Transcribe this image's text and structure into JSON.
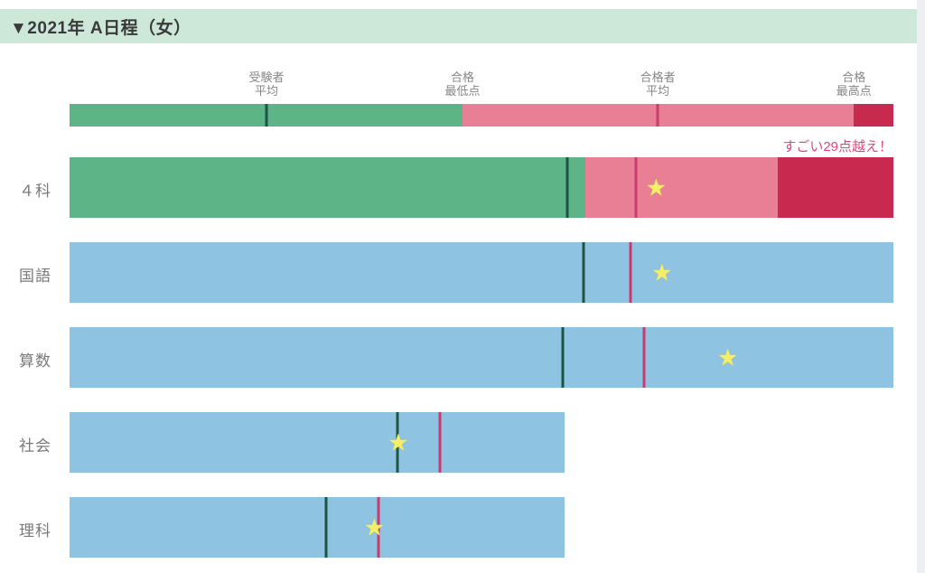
{
  "header": {
    "title": "▼2021年 A日程（女）"
  },
  "colors": {
    "header_bg": "#cde8d9",
    "green": "#5cb487",
    "pink": "#e97f95",
    "dark_red": "#c8294e",
    "blue": "#8fc3e2",
    "line_examinee": "#1d5443",
    "line_passer": "#c93a6e",
    "star": "#f5ee68",
    "annotation_text": "#e1457c",
    "row_label": "#7a7a7a",
    "legend_label": "#868686"
  },
  "chart_data": {
    "type": "bar",
    "title": "2021年 A日程（女）",
    "orientation": "horizontal",
    "scale_note": "no numeric axis shown; marker positions estimated as percent of full bar width",
    "legend_bar": {
      "markers": [
        {
          "key": "examinee-average",
          "line1": "受験者",
          "line2": "平均",
          "pct": 23.9,
          "style": "dark-green-line"
        },
        {
          "key": "pass-minimum",
          "line1": "合格",
          "line2": "最低点",
          "pct": 47.7,
          "style": "green-to-pink-boundary"
        },
        {
          "key": "passer-average",
          "line1": "合格者",
          "line2": "平均",
          "pct": 71.4,
          "style": "red-line"
        },
        {
          "key": "pass-maximum",
          "line1": "合格",
          "line2": "最高点",
          "pct": 95.2,
          "style": "pink-to-darkred-boundary"
        }
      ],
      "segments": [
        {
          "color": "green",
          "start": 0,
          "end": 47.7
        },
        {
          "color": "pink",
          "start": 47.7,
          "end": 95.2
        },
        {
          "color": "dark_red",
          "start": 95.2,
          "end": 100
        }
      ]
    },
    "rows": [
      {
        "key": "total-4-subjects",
        "label": "４科",
        "end_pct": 100,
        "segments": [
          {
            "color": "green",
            "start": 0,
            "end": 62.6
          },
          {
            "color": "pink",
            "start": 62.6,
            "end": 86.0
          },
          {
            "color": "dark_red",
            "start": 86.0,
            "end": 100
          }
        ],
        "examinee_avg_pct": 60.4,
        "passer_avg_pct": 68.8,
        "star_pct": 71.2,
        "annotation": "すごい29点越え！"
      },
      {
        "key": "japanese",
        "label": "国語",
        "end_pct": 100,
        "segments": [
          {
            "color": "blue",
            "start": 0,
            "end": 100
          }
        ],
        "examinee_avg_pct": 62.4,
        "passer_avg_pct": 68.1,
        "star_pct": 71.9
      },
      {
        "key": "math",
        "label": "算数",
        "end_pct": 100,
        "segments": [
          {
            "color": "blue",
            "start": 0,
            "end": 100
          }
        ],
        "examinee_avg_pct": 59.9,
        "passer_avg_pct": 69.7,
        "star_pct": 79.9
      },
      {
        "key": "social-studies",
        "label": "社会",
        "end_pct": 60.1,
        "segments": [
          {
            "color": "blue",
            "start": 0,
            "end": 60.1
          }
        ],
        "examinee_avg_pct": 39.8,
        "passer_avg_pct": 45.0,
        "star_pct": 39.9
      },
      {
        "key": "science",
        "label": "理科",
        "end_pct": 60.1,
        "segments": [
          {
            "color": "blue",
            "start": 0,
            "end": 60.1
          }
        ],
        "examinee_avg_pct": 31.1,
        "passer_avg_pct": 37.5,
        "star_pct": 37.0
      }
    ]
  }
}
